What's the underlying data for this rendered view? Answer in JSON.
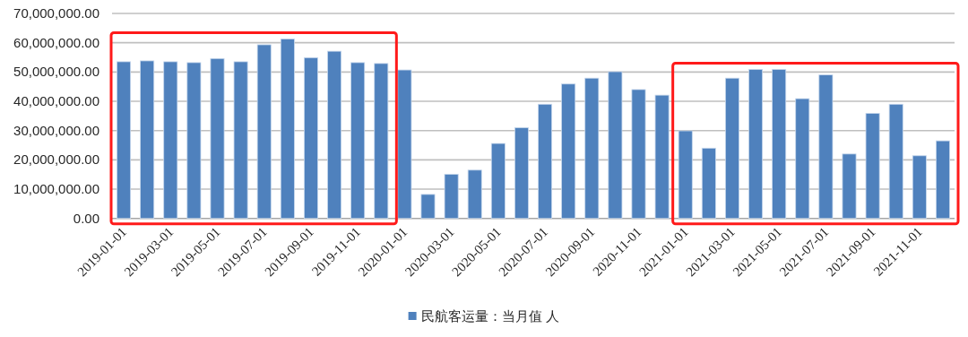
{
  "chart_data": {
    "type": "bar",
    "categories": [
      "2019-01-01",
      null,
      "2019-03-01",
      null,
      "2019-05-01",
      null,
      "2019-07-01",
      null,
      "2019-09-01",
      null,
      "2019-11-01",
      null,
      "2020-01-01",
      null,
      "2020-03-01",
      null,
      "2020-05-01",
      null,
      "2020-07-01",
      null,
      "2020-09-01",
      null,
      "2020-11-01",
      null,
      "2021-01-01",
      null,
      "2021-03-01",
      null,
      "2021-05-01",
      null,
      "2021-07-01",
      null,
      "2021-09-01",
      null,
      "2021-11-01",
      null
    ],
    "series": [
      {
        "name": "民航客运量：当月值 人",
        "color": "#4f81bd",
        "values": [
          53500000,
          53800000,
          53500000,
          53200000,
          54600000,
          53500000,
          59300000,
          61300000,
          54900000,
          57100000,
          53200000,
          52900000,
          50700000,
          8200000,
          15100000,
          16500000,
          25600000,
          31000000,
          39000000,
          45900000,
          47900000,
          50100000,
          44000000,
          42100000,
          29900000,
          24000000,
          47900000,
          50900000,
          50900000,
          40900000,
          49000000,
          22000000,
          35900000,
          39000000,
          21400000,
          26500000
        ]
      }
    ],
    "ylim": [
      0,
      70000000
    ],
    "yticks": [
      {
        "value": 0,
        "label": "0.00"
      },
      {
        "value": 10000000,
        "label": "10,000,000.00"
      },
      {
        "value": 20000000,
        "label": "20,000,000.00"
      },
      {
        "value": 30000000,
        "label": "30,000,000.00"
      },
      {
        "value": 40000000,
        "label": "40,000,000.00"
      },
      {
        "value": 50000000,
        "label": "50,000,000.00"
      },
      {
        "value": 60000000,
        "label": "60,000,000.00"
      },
      {
        "value": 70000000,
        "label": "70,000,000.00"
      }
    ],
    "grid": "y",
    "legend": "bottom"
  }
}
